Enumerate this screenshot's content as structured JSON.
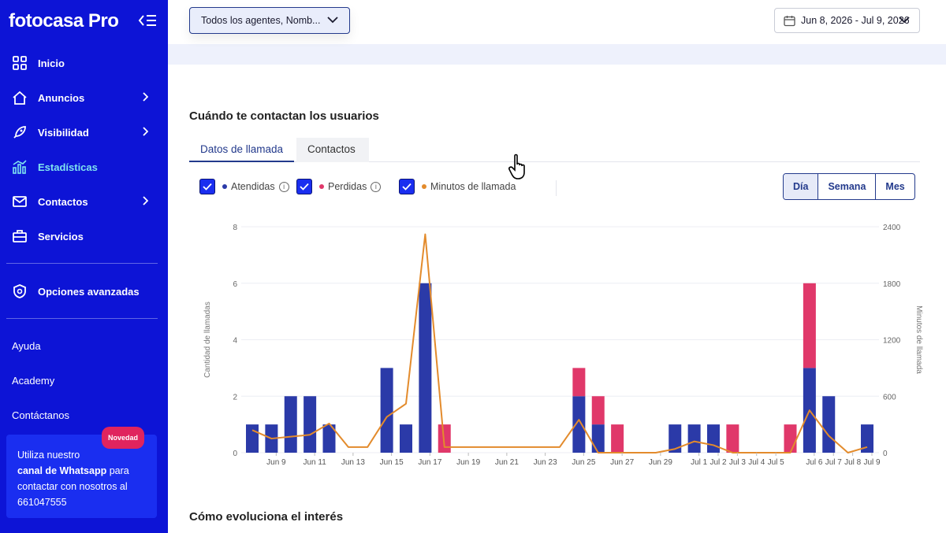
{
  "sidebar": {
    "logo": "fotocasa Pro",
    "items": [
      {
        "label": "Inicio",
        "icon": "grid-icon",
        "chevron": false,
        "active": false
      },
      {
        "label": "Anuncios",
        "icon": "home-icon",
        "chevron": true,
        "active": false
      },
      {
        "label": "Visibilidad",
        "icon": "rocket-icon",
        "chevron": true,
        "active": false
      },
      {
        "label": "Estadísticas",
        "icon": "chart-icon",
        "chevron": false,
        "active": true
      },
      {
        "label": "Contactos",
        "icon": "mail-icon",
        "chevron": true,
        "active": false
      },
      {
        "label": "Servicios",
        "icon": "briefcase-icon",
        "chevron": false,
        "active": false
      }
    ],
    "advanced": "Opciones avanzadas",
    "links": [
      "Ayuda",
      "Academy",
      "Contáctanos"
    ],
    "promo": {
      "badge": "Novedad",
      "line1": "Utiliza nuestro",
      "bold": "canal de Whatsapp",
      "line2": " para contactar con nosotros al 661047555"
    }
  },
  "header": {
    "agents_select": "Todos los agentes, Nomb...",
    "date_range": "Jun 8, 2026 - Jul 9, 2026"
  },
  "section": {
    "title": "Cuándo te contactan los usuarios",
    "tabs": [
      "Datos de llamada",
      "Contactos"
    ],
    "legend": {
      "answered": "Atendidas",
      "missed": "Perdidas",
      "minutes": "Minutos de llamada"
    },
    "periods": [
      "Día",
      "Semana",
      "Mes"
    ],
    "next_title": "Cómo evoluciona el interés"
  },
  "colors": {
    "sidebar": "#0d14d6",
    "answered": "#2b3aa8",
    "missed": "#e0386a",
    "minutes": "#e38b2c"
  },
  "chart_data": {
    "type": "bar",
    "ylabel": "Cantidad de llamadas",
    "y2label": "Minutos de llamada",
    "ylim": [
      0,
      8
    ],
    "y2lim": [
      0,
      2400
    ],
    "yticks": [
      0,
      2,
      4,
      6,
      8
    ],
    "y2ticks": [
      0,
      600,
      1200,
      1800,
      2400
    ],
    "x_labels": [
      "Jun 9",
      "Jun 11",
      "Jun 13",
      "Jun 15",
      "Jun 17",
      "Jun 19",
      "Jun 21",
      "Jun 23",
      "Jun 25",
      "Jun 27",
      "Jun 29",
      "Jul 1",
      "Jul 2",
      "Jul 3",
      "Jul 4",
      "Jul 5",
      "Jul 6",
      "Jul 7",
      "Jul 8",
      "Jul 9"
    ],
    "series": [
      {
        "name": "Atendidas",
        "values": [
          1,
          1,
          2,
          2,
          1,
          0,
          0,
          3,
          1,
          6,
          0,
          0,
          0,
          0,
          0,
          0,
          0,
          2,
          1,
          0,
          0,
          0,
          1,
          1,
          1,
          0,
          0,
          0,
          0,
          3,
          2,
          0,
          1
        ]
      },
      {
        "name": "Perdidas",
        "values": [
          0,
          0,
          0,
          0,
          0,
          0,
          0,
          0,
          0,
          0,
          1,
          0,
          0,
          0,
          0,
          0,
          0,
          1,
          1,
          1,
          0,
          0,
          0,
          0,
          0,
          1,
          0,
          0,
          1,
          3,
          0,
          0,
          0
        ]
      },
      {
        "name": "Minutos de llamada",
        "values": [
          240,
          150,
          170,
          190,
          310,
          60,
          60,
          380,
          520,
          2320,
          60,
          60,
          60,
          60,
          60,
          60,
          60,
          350,
          0,
          0,
          0,
          0,
          40,
          120,
          80,
          0,
          0,
          0,
          0,
          450,
          180,
          0,
          60
        ]
      }
    ]
  }
}
